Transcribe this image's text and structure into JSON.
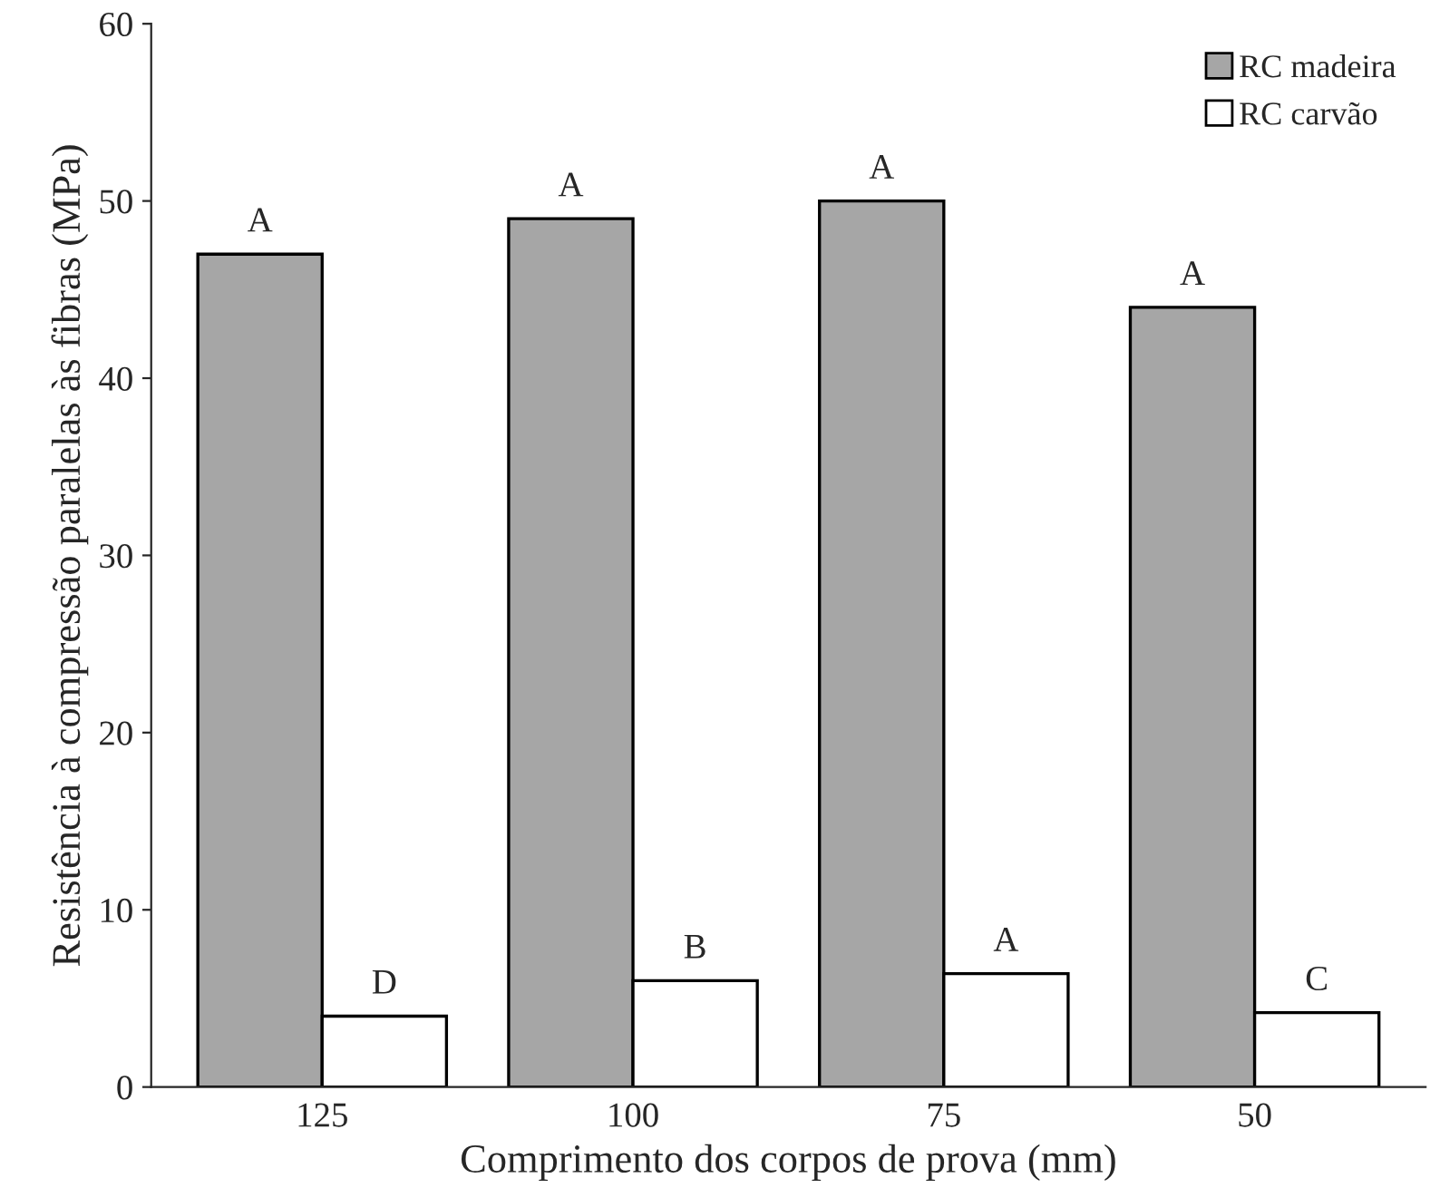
{
  "chart_data": {
    "type": "bar",
    "xlabel": "Comprimento dos corpos de prova (mm)",
    "ylabel": "Resistência à compressão paralelas às fibras (MPa)",
    "categories": [
      "125",
      "100",
      "75",
      "50"
    ],
    "series": [
      {
        "name": "RC madeira",
        "color": "#a6a6a6",
        "values": [
          47,
          49,
          50,
          44
        ],
        "value_labels": [
          "A",
          "A",
          "A",
          "A"
        ]
      },
      {
        "name": "RC carvão",
        "color": "#ffffff",
        "values": [
          4,
          6,
          6.4,
          4.2
        ],
        "value_labels": [
          "D",
          "B",
          "A",
          "C"
        ]
      }
    ],
    "ylim": [
      0,
      60
    ],
    "yticks": [
      0,
      10,
      20,
      30,
      40,
      50,
      60
    ],
    "grid": false,
    "legend": "top right"
  }
}
